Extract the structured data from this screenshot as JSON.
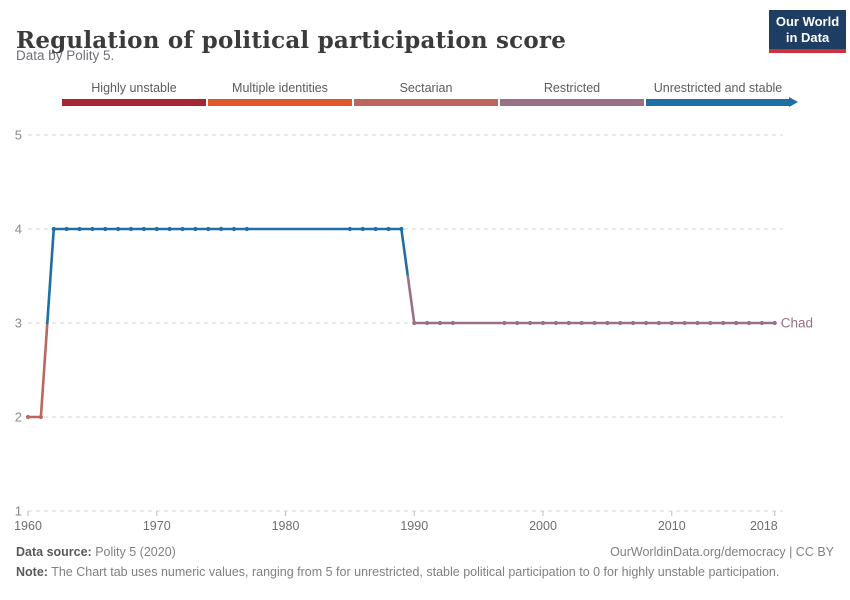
{
  "header": {
    "title": "Regulation of political participation score",
    "subtitle": "Data by Polity 5.",
    "logo": {
      "line1": "Our World",
      "line2": "in Data",
      "bg_color": "#1d3d63",
      "accent_color": "#cf303e"
    }
  },
  "legend": {
    "items": [
      {
        "label": "Highly unstable",
        "color": "#a52532",
        "arrow": false
      },
      {
        "label": "Multiple identities",
        "color": "#e2562e",
        "arrow": false
      },
      {
        "label": "Sectarian",
        "color": "#bd665e",
        "arrow": false
      },
      {
        "label": "Restricted",
        "color": "#997086",
        "arrow": false
      },
      {
        "label": "Unrestricted and stable",
        "color": "#1d6fa5",
        "arrow": true
      }
    ]
  },
  "chart_data": {
    "type": "line",
    "title": "Regulation of political participation score",
    "entity": "Chad",
    "x": {
      "min": 1960,
      "max": 2018,
      "ticks": [
        1960,
        1970,
        1980,
        1990,
        2000,
        2010,
        2018
      ]
    },
    "y": {
      "min": 1,
      "max": 5,
      "ticks": [
        1,
        2,
        3,
        4,
        5
      ]
    },
    "grid": true,
    "legend_position": "top",
    "value_colors": {
      "2": "#bd665e",
      "3": "#997086",
      "4": "#1d6fa5"
    },
    "series": [
      {
        "name": "Chad",
        "label_color": "#997086",
        "runs": [
          {
            "start": 1960,
            "end": 1961,
            "value": 2
          },
          {
            "start": 1962,
            "end": 1977,
            "value": 4
          },
          {
            "start": 1985,
            "end": 1989,
            "value": 4
          },
          {
            "start": 1990,
            "end": 1993,
            "value": 3
          },
          {
            "start": 1997,
            "end": 2018,
            "value": 3
          }
        ],
        "gaps_interpolated": [
          [
            1978,
            1984
          ],
          [
            1994,
            1996
          ]
        ]
      }
    ]
  },
  "footer": {
    "source_label": "Data source:",
    "source_text": " Polity 5 (2020)",
    "link": "OurWorldinData.org/democracy | CC BY",
    "note_label": "Note:",
    "note_text": " The Chart tab uses numeric values, ranging from 5 for unrestricted, stable political participation to 0 for highly unstable participation."
  }
}
